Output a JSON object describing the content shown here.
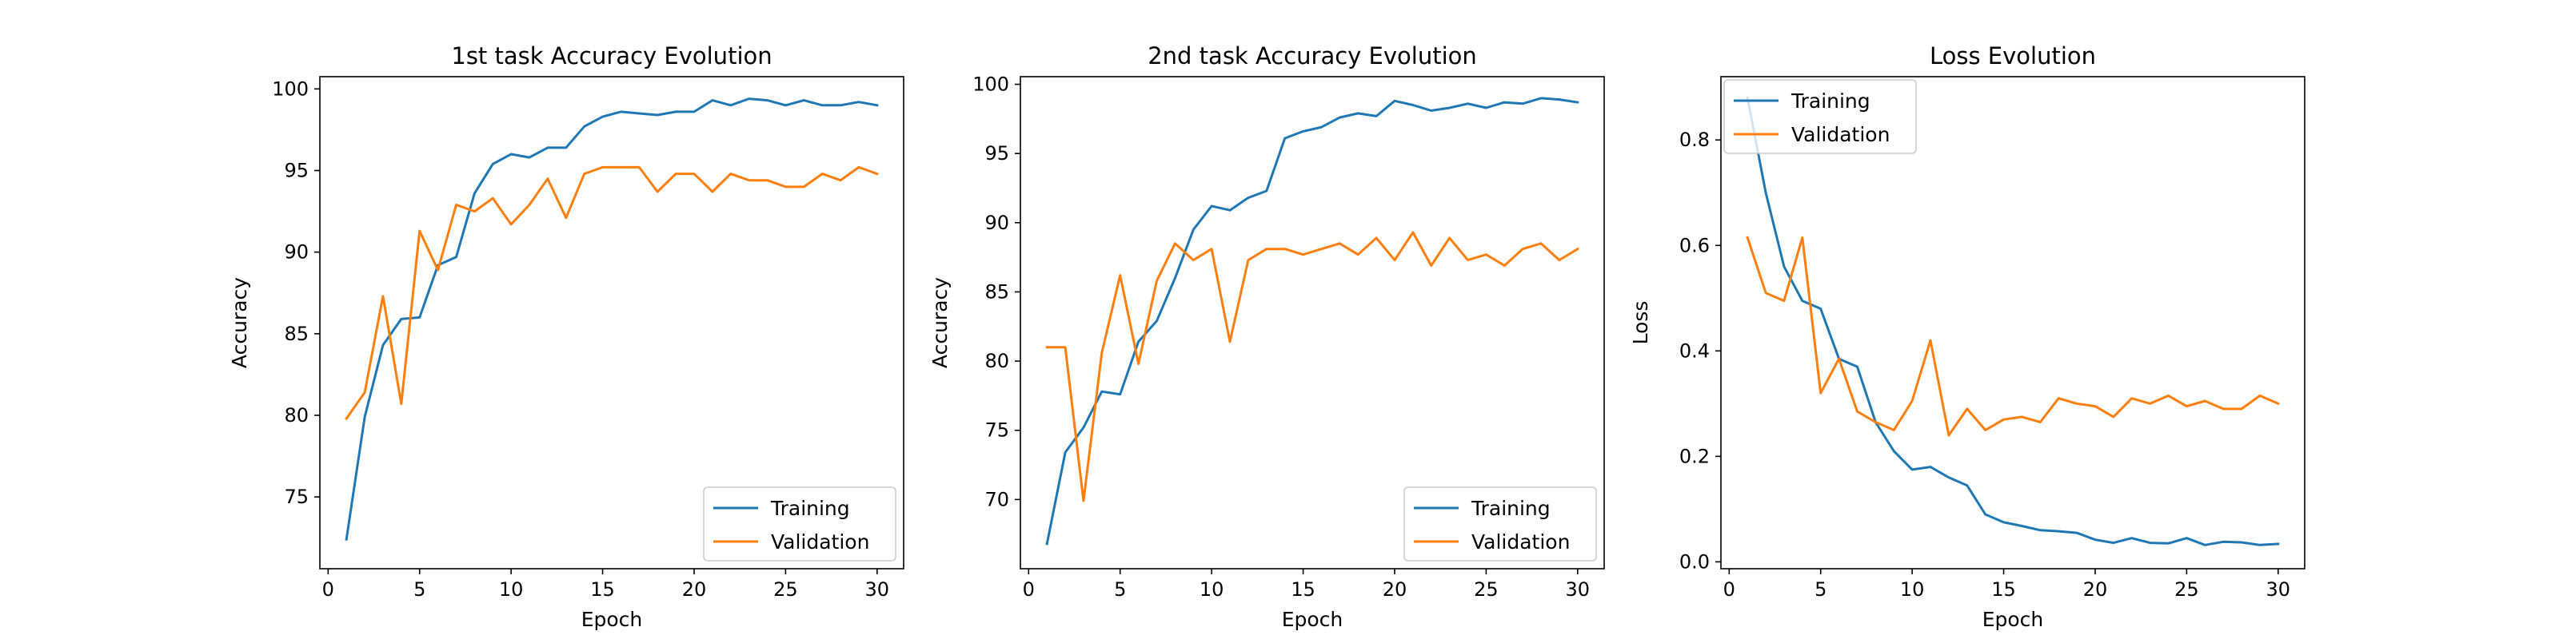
{
  "colors": {
    "training": "#1f77b4",
    "validation": "#ff7f0e",
    "axes": "#000000",
    "background": "#ffffff"
  },
  "chart_data": [
    {
      "type": "line",
      "title": "1st task Accuracy Evolution",
      "xlabel": "Epoch",
      "ylabel": "Accuracy",
      "xlim": [
        -0.45,
        31.45
      ],
      "ylim": [
        70.6,
        100.75
      ],
      "xticks": [
        0,
        5,
        10,
        15,
        20,
        25,
        30
      ],
      "yticks": [
        75,
        80,
        85,
        90,
        95,
        100
      ],
      "grid": false,
      "legend_loc": "lower right",
      "x": [
        1,
        2,
        3,
        4,
        5,
        6,
        7,
        8,
        9,
        10,
        11,
        12,
        13,
        14,
        15,
        16,
        17,
        18,
        19,
        20,
        21,
        22,
        23,
        24,
        25,
        26,
        27,
        28,
        29,
        30
      ],
      "series": [
        {
          "name": "Training",
          "color": "#1f77b4",
          "values": [
            72.4,
            79.9,
            84.3,
            85.9,
            86.0,
            89.2,
            89.7,
            93.6,
            95.4,
            96.0,
            95.8,
            96.4,
            96.4,
            97.7,
            98.3,
            98.6,
            98.5,
            98.4,
            98.6,
            98.6,
            99.3,
            99.0,
            99.4,
            99.3,
            99.0,
            99.3,
            99.0,
            99.0,
            99.2,
            99.0
          ]
        },
        {
          "name": "Validation",
          "color": "#ff7f0e",
          "values": [
            79.8,
            81.4,
            87.3,
            80.7,
            91.3,
            88.9,
            92.9,
            92.5,
            93.3,
            91.7,
            92.9,
            94.5,
            92.1,
            94.8,
            95.2,
            95.2,
            95.2,
            93.7,
            94.8,
            94.8,
            93.7,
            94.8,
            94.4,
            94.4,
            94.0,
            94.0,
            94.8,
            94.4,
            95.2,
            94.8
          ]
        }
      ]
    },
    {
      "type": "line",
      "title": "2nd task Accuracy Evolution",
      "xlabel": "Epoch",
      "ylabel": "Accuracy",
      "xlim": [
        -0.45,
        31.45
      ],
      "ylim": [
        65.0,
        100.55
      ],
      "xticks": [
        0,
        5,
        10,
        15,
        20,
        25,
        30
      ],
      "yticks": [
        70,
        75,
        80,
        85,
        90,
        95,
        100
      ],
      "grid": false,
      "legend_loc": "lower right",
      "x": [
        1,
        2,
        3,
        4,
        5,
        6,
        7,
        8,
        9,
        10,
        11,
        12,
        13,
        14,
        15,
        16,
        17,
        18,
        19,
        20,
        21,
        22,
        23,
        24,
        25,
        26,
        27,
        28,
        29,
        30
      ],
      "series": [
        {
          "name": "Training",
          "color": "#1f77b4",
          "values": [
            66.8,
            73.4,
            75.2,
            77.8,
            77.6,
            81.4,
            82.9,
            86.0,
            89.5,
            91.2,
            90.9,
            91.8,
            92.3,
            96.1,
            96.6,
            96.9,
            97.6,
            97.9,
            97.7,
            98.8,
            98.5,
            98.1,
            98.3,
            98.6,
            98.3,
            98.7,
            98.6,
            99.0,
            98.9,
            98.7
          ]
        },
        {
          "name": "Validation",
          "color": "#ff7f0e",
          "values": [
            81.0,
            81.0,
            69.9,
            80.6,
            86.2,
            79.8,
            85.8,
            88.5,
            87.3,
            88.1,
            81.4,
            87.3,
            88.1,
            88.1,
            87.7,
            88.1,
            88.5,
            87.7,
            88.9,
            87.3,
            89.3,
            86.9,
            88.9,
            87.3,
            87.7,
            86.9,
            88.1,
            88.5,
            87.3,
            88.1
          ]
        }
      ]
    },
    {
      "type": "line",
      "title": "Loss Evolution",
      "xlabel": "Epoch",
      "ylabel": "Loss",
      "xlim": [
        -0.45,
        31.45
      ],
      "ylim": [
        -0.013,
        0.92
      ],
      "xticks": [
        0,
        5,
        10,
        15,
        20,
        25,
        30
      ],
      "yticks": [
        0.0,
        0.2,
        0.4,
        0.6,
        0.8
      ],
      "grid": false,
      "legend_loc": "upper left",
      "x": [
        1,
        2,
        3,
        4,
        5,
        6,
        7,
        8,
        9,
        10,
        11,
        12,
        13,
        14,
        15,
        16,
        17,
        18,
        19,
        20,
        21,
        22,
        23,
        24,
        25,
        26,
        27,
        28,
        29,
        30
      ],
      "series": [
        {
          "name": "Training",
          "color": "#1f77b4",
          "values": [
            0.88,
            0.7,
            0.56,
            0.495,
            0.48,
            0.385,
            0.37,
            0.265,
            0.21,
            0.175,
            0.18,
            0.16,
            0.145,
            0.09,
            0.075,
            0.068,
            0.06,
            0.058,
            0.055,
            0.042,
            0.036,
            0.045,
            0.036,
            0.035,
            0.045,
            0.032,
            0.038,
            0.037,
            0.032,
            0.034
          ]
        },
        {
          "name": "Validation",
          "color": "#ff7f0e",
          "values": [
            0.615,
            0.51,
            0.495,
            0.615,
            0.32,
            0.385,
            0.285,
            0.265,
            0.25,
            0.305,
            0.42,
            0.24,
            0.29,
            0.25,
            0.27,
            0.275,
            0.265,
            0.31,
            0.3,
            0.295,
            0.275,
            0.31,
            0.3,
            0.315,
            0.295,
            0.305,
            0.29,
            0.29,
            0.315,
            0.3
          ]
        }
      ]
    }
  ]
}
